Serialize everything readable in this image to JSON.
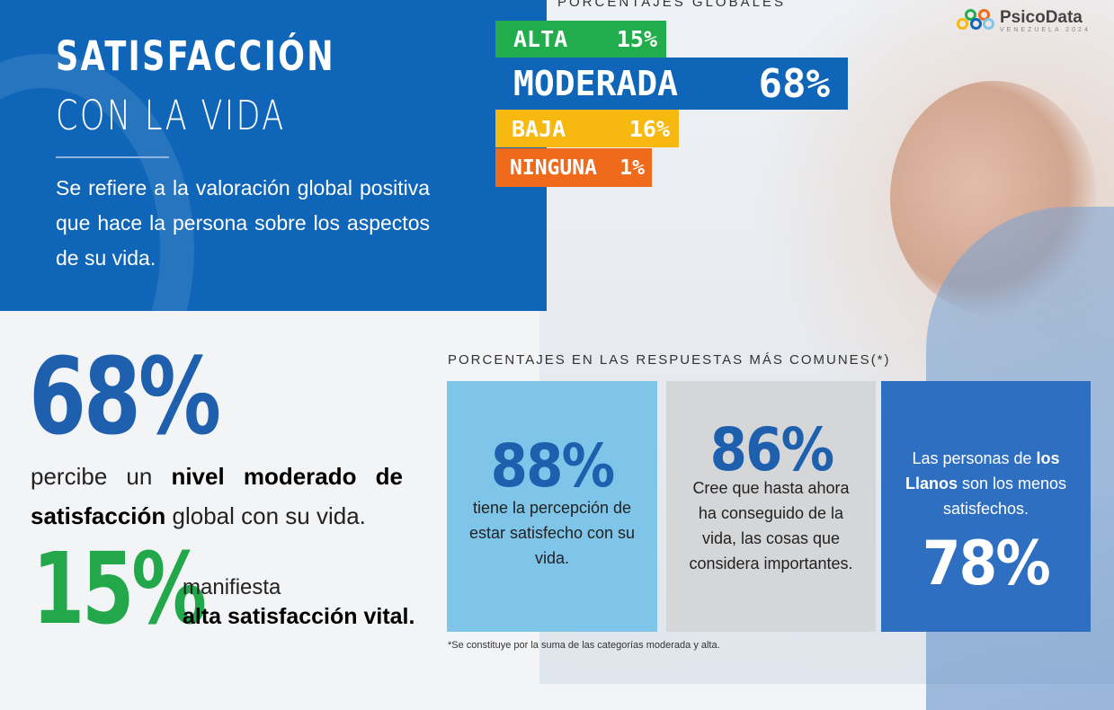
{
  "brand": {
    "name": "PsicoData",
    "sub": "VENEZUELA 2024"
  },
  "hero": {
    "title_line1": "SATISFACCIÓN",
    "title_line2": "CON LA VIDA",
    "description": "Se refiere a la valoración global positiva que hace la persona sobre los aspectos de su vida."
  },
  "global": {
    "heading": "PORCENTAJES GLOBALES",
    "levels": [
      {
        "label": "ALTA",
        "value": "15%",
        "percent": 15,
        "color": "#21ad4b"
      },
      {
        "label": "MODERADA",
        "value": "68%",
        "percent": 68,
        "color": "#0f65b8"
      },
      {
        "label": "BAJA",
        "value": "16%",
        "percent": 16,
        "color": "#f7b910"
      },
      {
        "label": "NINGUNA",
        "value": "1%",
        "percent": 1,
        "color": "#f06a1b"
      }
    ]
  },
  "stat_moderate": {
    "value": "68%",
    "text_pre": "percibe un ",
    "text_bold1": "nivel moderado de satisfacción",
    "text_post": " global con su vida."
  },
  "stat_high": {
    "value": "15%",
    "line1": "manifiesta",
    "line2": "alta satisfacción vital."
  },
  "common": {
    "heading": "PORCENTAJES EN LAS RESPUESTAS MÁS COMUNES(*)",
    "cards": [
      {
        "value": "88%",
        "text": "tiene la percepción de estar satisfecho con su vida."
      },
      {
        "value": "86%",
        "text": "Cree que hasta ahora ha conseguido de la vida, las cosas que considera importantes."
      },
      {
        "value": "78%",
        "text_pre": "Las personas de ",
        "text_bold": "los Llanos",
        "text_post": " son los menos satisfechos."
      }
    ]
  },
  "footnote": "*Se constituye por la suma de las categorías moderada y alta.",
  "colors": {
    "primary_blue": "#0f65b8",
    "green": "#21ad4b",
    "yellow": "#f7b910",
    "orange": "#f06a1b",
    "light_blue": "#7ec5e9",
    "grey": "#d5d6d8"
  }
}
